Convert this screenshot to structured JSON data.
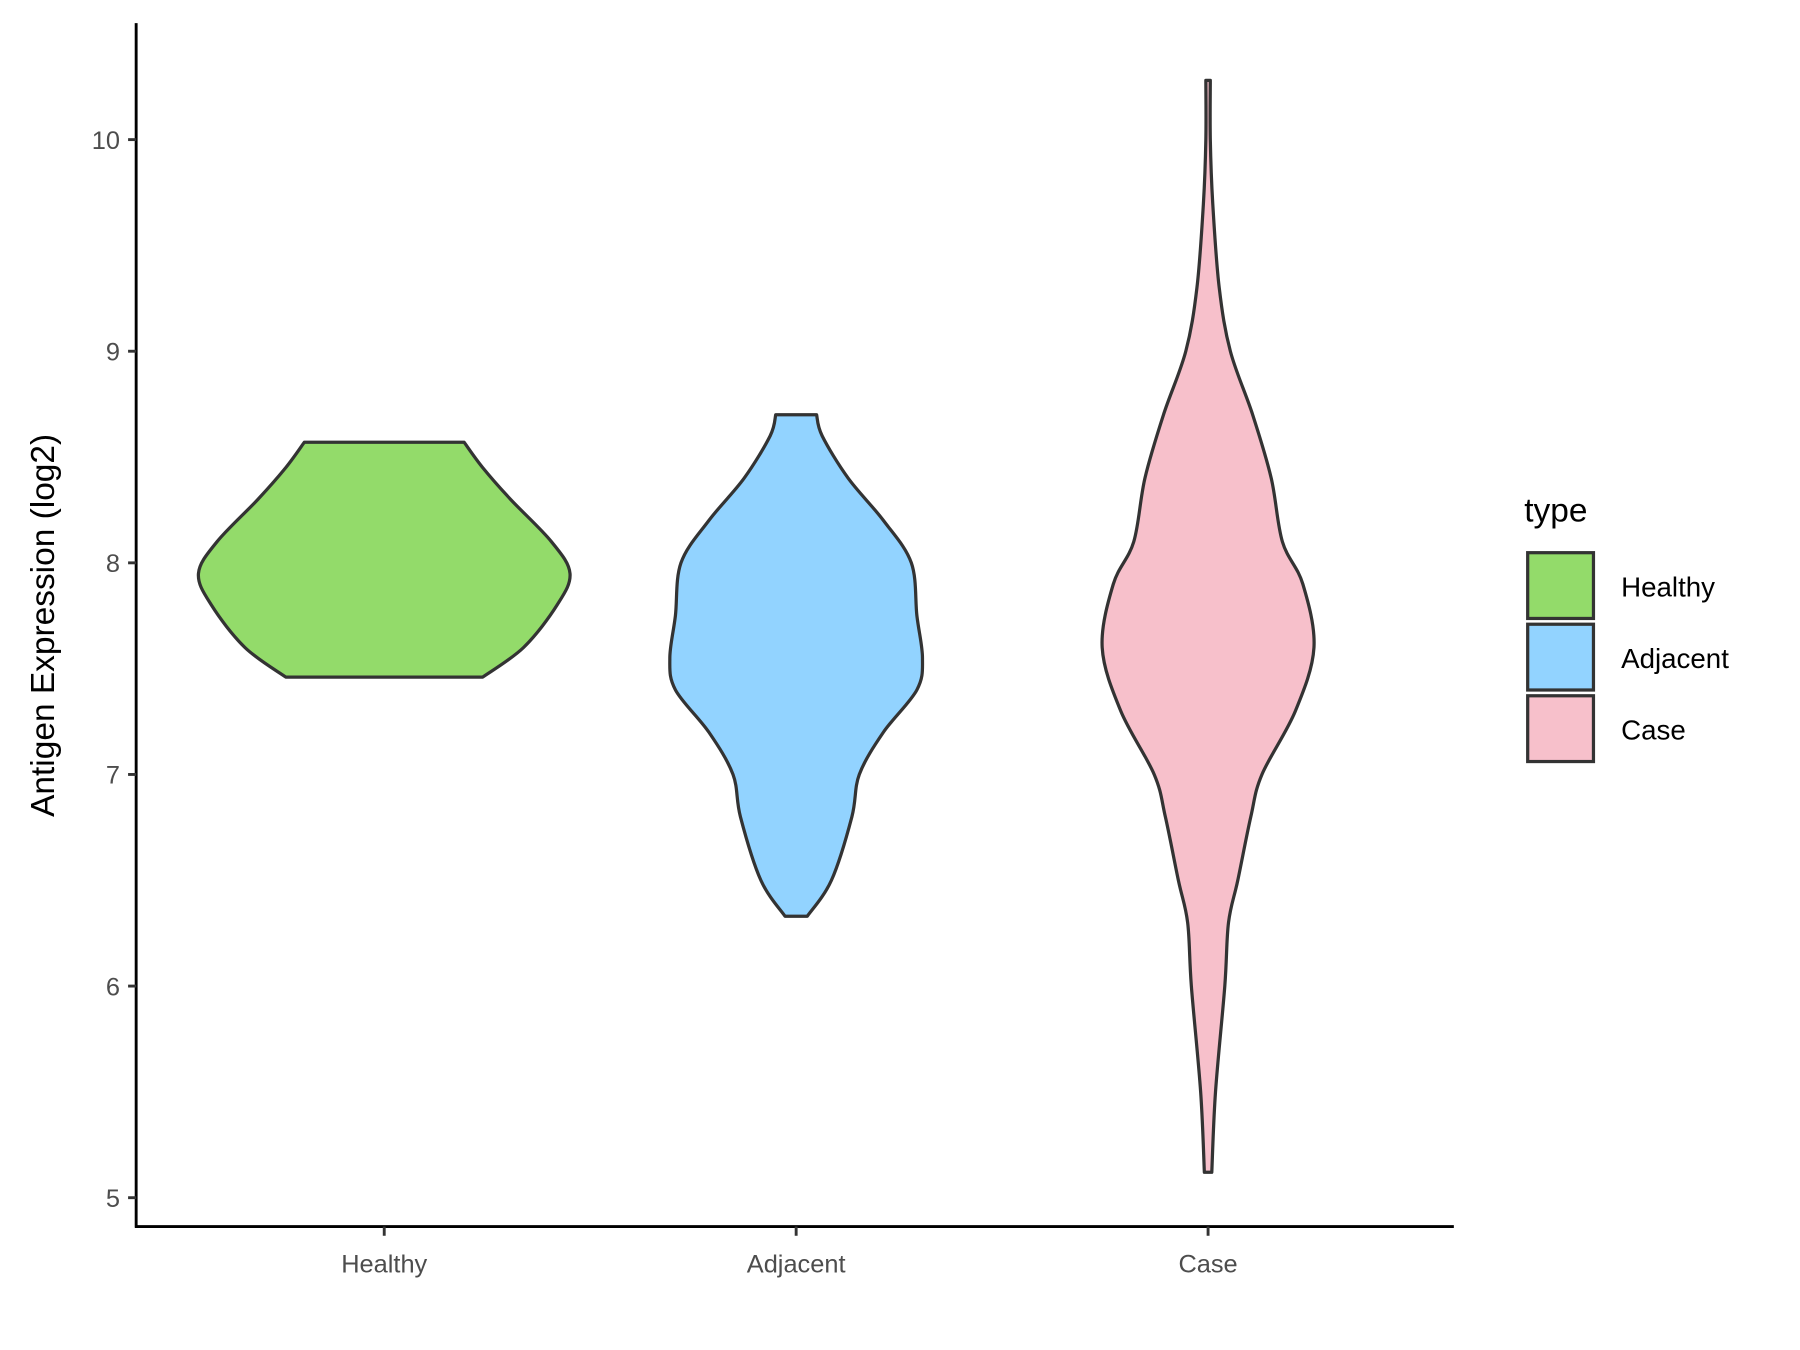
{
  "chart_data": {
    "type": "violin",
    "title": "",
    "xlabel": "",
    "ylabel": "Antigen Expression (log2)",
    "ylim": [
      4.9,
      10.55
    ],
    "yticks": [
      5,
      6,
      7,
      8,
      9,
      10
    ],
    "categories": [
      "Healthy",
      "Adjacent",
      "Case"
    ],
    "legend": {
      "title": "type",
      "placement": "right",
      "entries": [
        "Healthy",
        "Adjacent",
        "Case"
      ]
    },
    "colors": {
      "Healthy": "#93DB6A",
      "Adjacent": "#92D3FF",
      "Case": "#F7C0CB",
      "outline": "#333333"
    },
    "series": [
      {
        "name": "Healthy",
        "min": 7.46,
        "max": 8.57,
        "profile": [
          [
            7.46,
            0.53
          ],
          [
            7.6,
            0.75
          ],
          [
            7.8,
            0.93
          ],
          [
            7.95,
            1.0
          ],
          [
            8.1,
            0.9
          ],
          [
            8.3,
            0.68
          ],
          [
            8.45,
            0.53
          ],
          [
            8.57,
            0.43
          ]
        ]
      },
      {
        "name": "Adjacent",
        "min": 6.33,
        "max": 8.7,
        "profile": [
          [
            6.33,
            0.06
          ],
          [
            6.5,
            0.19
          ],
          [
            6.8,
            0.3
          ],
          [
            7.0,
            0.34
          ],
          [
            7.2,
            0.47
          ],
          [
            7.4,
            0.65
          ],
          [
            7.55,
            0.68
          ],
          [
            7.75,
            0.65
          ],
          [
            8.0,
            0.62
          ],
          [
            8.2,
            0.47
          ],
          [
            8.4,
            0.28
          ],
          [
            8.6,
            0.14
          ],
          [
            8.7,
            0.11
          ]
        ]
      },
      {
        "name": "Case",
        "min": 5.12,
        "max": 10.28,
        "profile": [
          [
            5.12,
            0.02
          ],
          [
            5.5,
            0.04
          ],
          [
            6.0,
            0.09
          ],
          [
            6.3,
            0.11
          ],
          [
            6.5,
            0.16
          ],
          [
            6.8,
            0.23
          ],
          [
            7.0,
            0.29
          ],
          [
            7.3,
            0.47
          ],
          [
            7.6,
            0.57
          ],
          [
            7.9,
            0.51
          ],
          [
            8.1,
            0.4
          ],
          [
            8.4,
            0.34
          ],
          [
            8.7,
            0.24
          ],
          [
            9.0,
            0.12
          ],
          [
            9.3,
            0.06
          ],
          [
            9.7,
            0.025
          ],
          [
            10.0,
            0.012
          ],
          [
            10.28,
            0.012
          ]
        ]
      }
    ]
  }
}
